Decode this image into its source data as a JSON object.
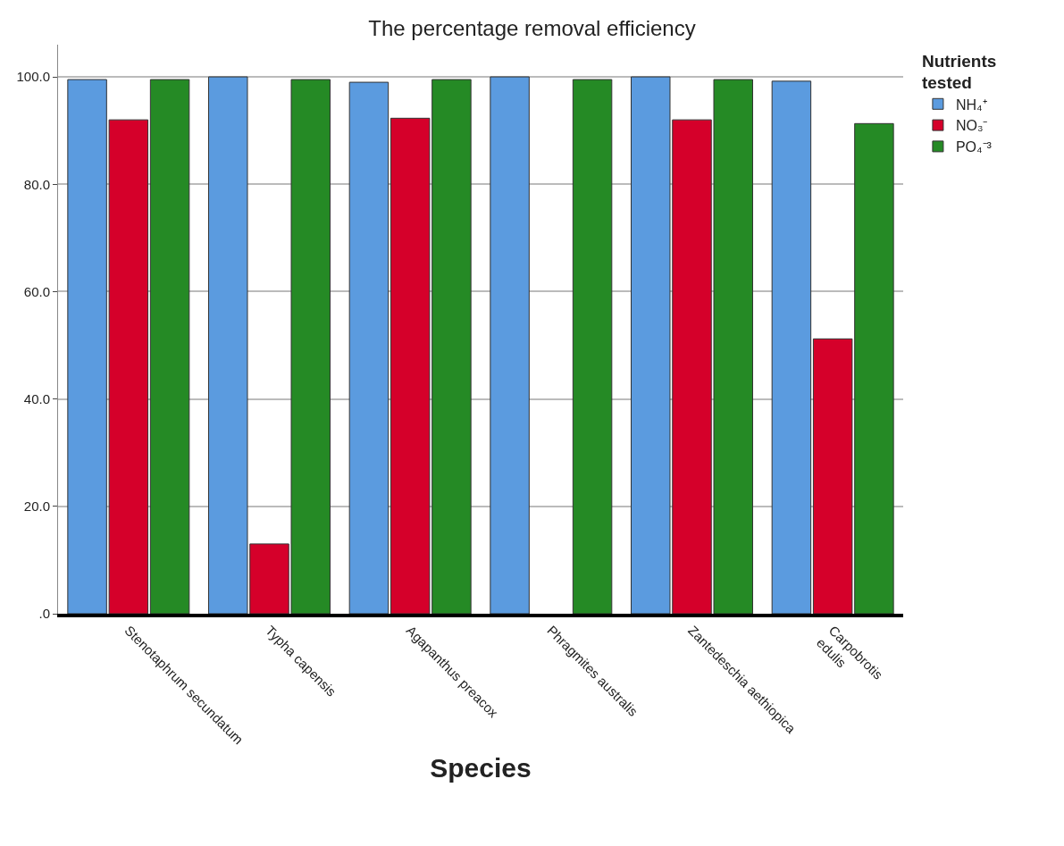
{
  "chart_data": {
    "type": "bar",
    "title": "The percentage removal efficiency",
    "xlabel": "Species",
    "legend_title": "Nutrients\ntested",
    "categories": [
      "Stenotaphrum secundatum",
      "Typha capensis",
      "Agapanthus preacox",
      "Phragmites australis",
      "Zantedeschia aethiopica",
      "Carpobrotis\nedulis"
    ],
    "series": [
      {
        "name": "NH₄⁺",
        "color": "#5b9bdf",
        "values": [
          99.5,
          100,
          99,
          100,
          100,
          99.2
        ]
      },
      {
        "name": "NO₃⁻",
        "color": "#d5002a",
        "values": [
          92,
          13,
          92.3,
          null,
          92,
          51.2
        ]
      },
      {
        "name": "PO₄⁻³",
        "color": "#258a25",
        "values": [
          99.5,
          99.5,
          99.5,
          99.5,
          99.5,
          91.3
        ]
      }
    ],
    "ylim": [
      0,
      106
    ],
    "yticks": [
      {
        "value": 0,
        "label": ".0"
      },
      {
        "value": 20,
        "label": "20.0"
      },
      {
        "value": 40,
        "label": "40.0"
      },
      {
        "value": 60,
        "label": "60.0"
      },
      {
        "value": 80,
        "label": "80.0"
      },
      {
        "value": 100,
        "label": "100.0"
      }
    ],
    "grid": "y",
    "legend": "top right"
  }
}
